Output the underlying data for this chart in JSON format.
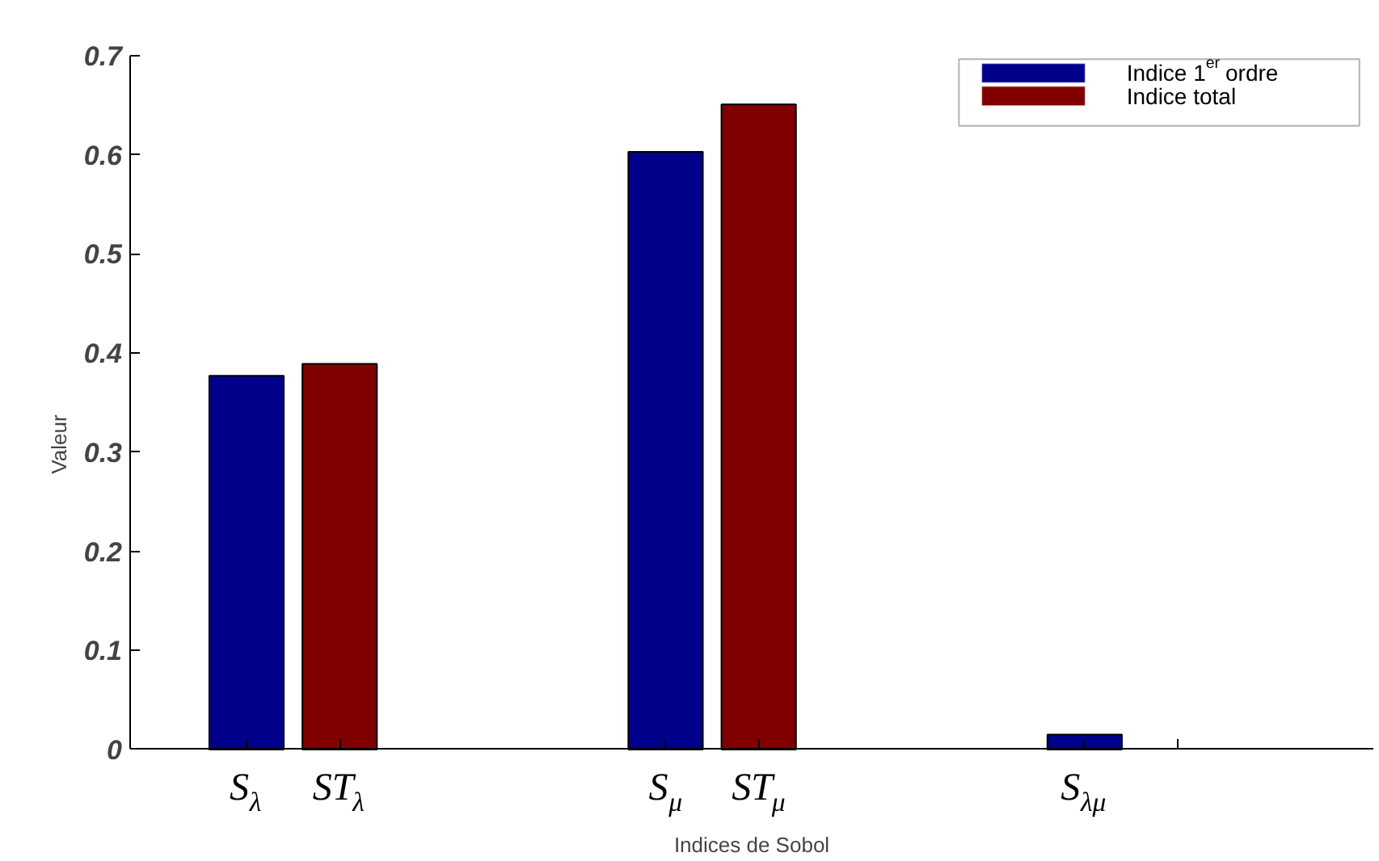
{
  "chart_data": {
    "type": "bar",
    "xlabel": "Indices de Sobol",
    "ylabel": "Valeur",
    "categories": [
      "S$_{λ}$",
      "ST$_{λ}$",
      "S$_{μ}$",
      "ST$_{μ}$",
      "S$_{λμ}$",
      null
    ],
    "series": [
      {
        "name": "Indice 1$^{er}$ ordre",
        "color": "#00008b",
        "values": [
          0.377,
          null,
          0.603,
          null,
          0.015,
          null
        ]
      },
      {
        "name": "Indice total",
        "color": "#800000",
        "values": [
          null,
          0.389,
          null,
          0.651,
          null,
          null
        ]
      }
    ],
    "ylim": [
      0,
      0.7
    ],
    "yticks": [
      0,
      0.1,
      0.2,
      0.3,
      0.4,
      0.5,
      0.6,
      0.7
    ],
    "legend": "top right"
  }
}
